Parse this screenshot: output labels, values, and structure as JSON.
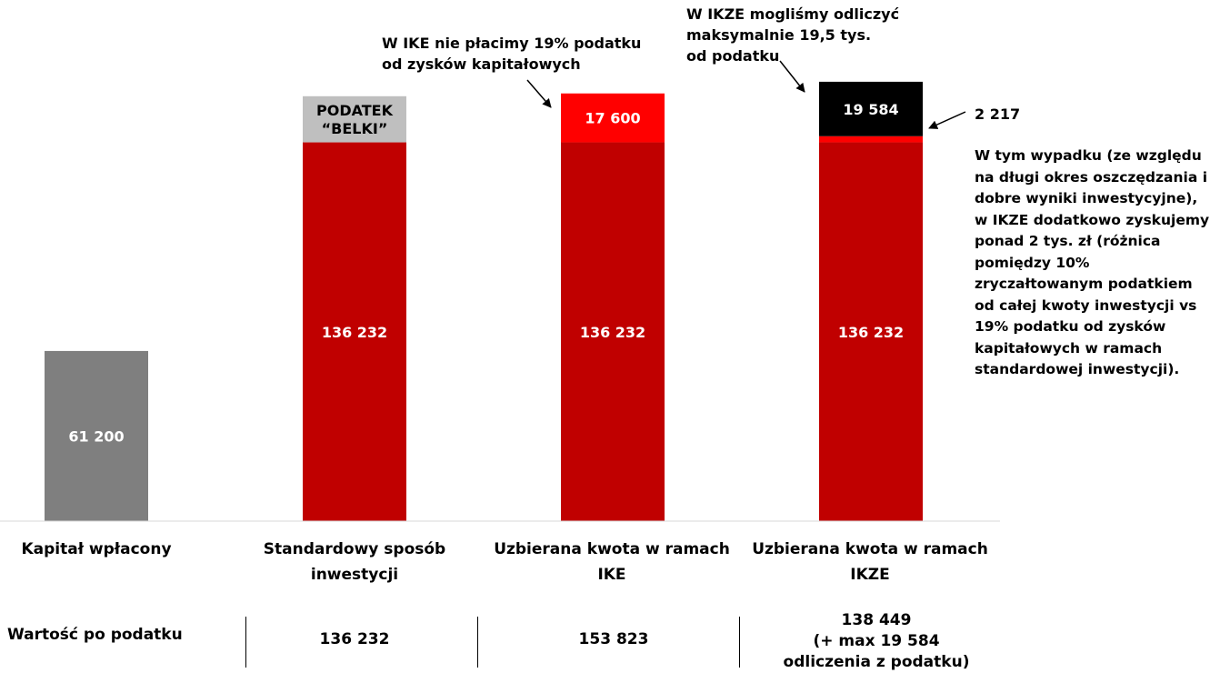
{
  "chart_data": {
    "type": "bar",
    "stacked": true,
    "categories": [
      "Kapitał wpłacony",
      "Standardowy sposób inwestycji",
      "Uzbierana kwota w ramach IKE",
      "Uzbierana kwota w ramach IKZE"
    ],
    "bars": [
      {
        "category": "Kapitał wpłacony",
        "segments": [
          {
            "value": 61200,
            "label": "61 200",
            "color": "#7f7f7f"
          }
        ]
      },
      {
        "category": "Standardowy sposób inwestycji",
        "segments": [
          {
            "value": 136232,
            "label": "136 232",
            "color": "#c00000"
          },
          {
            "value": 16600,
            "label": "PODATEK “BELKI”",
            "color": "#bfbfbf"
          }
        ]
      },
      {
        "category": "Uzbierana kwota w ramach IKE",
        "segments": [
          {
            "value": 136232,
            "label": "136 232",
            "color": "#c00000"
          },
          {
            "value": 17600,
            "label": "17 600",
            "color": "#ff0000"
          }
        ]
      },
      {
        "category": "Uzbierana kwota w ramach IKZE",
        "segments": [
          {
            "value": 136232,
            "label": "136 232",
            "color": "#c00000"
          },
          {
            "value": 2217,
            "label": "",
            "color": "#ff0000"
          },
          {
            "value": 19584,
            "label": "19 584",
            "color": "#000000"
          }
        ]
      }
    ],
    "ylim": [
      0,
      158000
    ],
    "grid": false,
    "legend": "none"
  },
  "annotations": {
    "ike_note": [
      "W IKE nie płacimy 19% podatku",
      "od zysków kapitałowych"
    ],
    "ikze_note": [
      "W IKZE mogliśmy odliczyć",
      "maksymalnie 19,5 tys.",
      "od podatku"
    ],
    "extra_value": "2 217",
    "side_note": "W tym wypadku (ze względu na długi okres oszczędzania i dobre wyniki inwestycyjne), w IKZE dodatkowo zyskujemy ponad 2 tys. zł (różnica pomiędzy 10% zryczałtowanym podatkiem od całej kwoty inwestycji vs 19% podatku od zysków kapitałowych w ramach standardowej inwestycji)."
  },
  "categories_display": [
    [
      "Kapitał wpłacony"
    ],
    [
      "Standardowy sposób",
      "inwestycji"
    ],
    [
      "Uzbierana kwota w ramach",
      "IKE"
    ],
    [
      "Uzbierana kwota w ramach",
      "IKZE"
    ]
  ],
  "after_tax": {
    "label": "Wartość po podatku",
    "values": [
      [
        "136 232"
      ],
      [
        "153 823"
      ],
      [
        "138 449",
        "(+ max 19 584",
        "odliczenia z podatku)"
      ]
    ]
  }
}
